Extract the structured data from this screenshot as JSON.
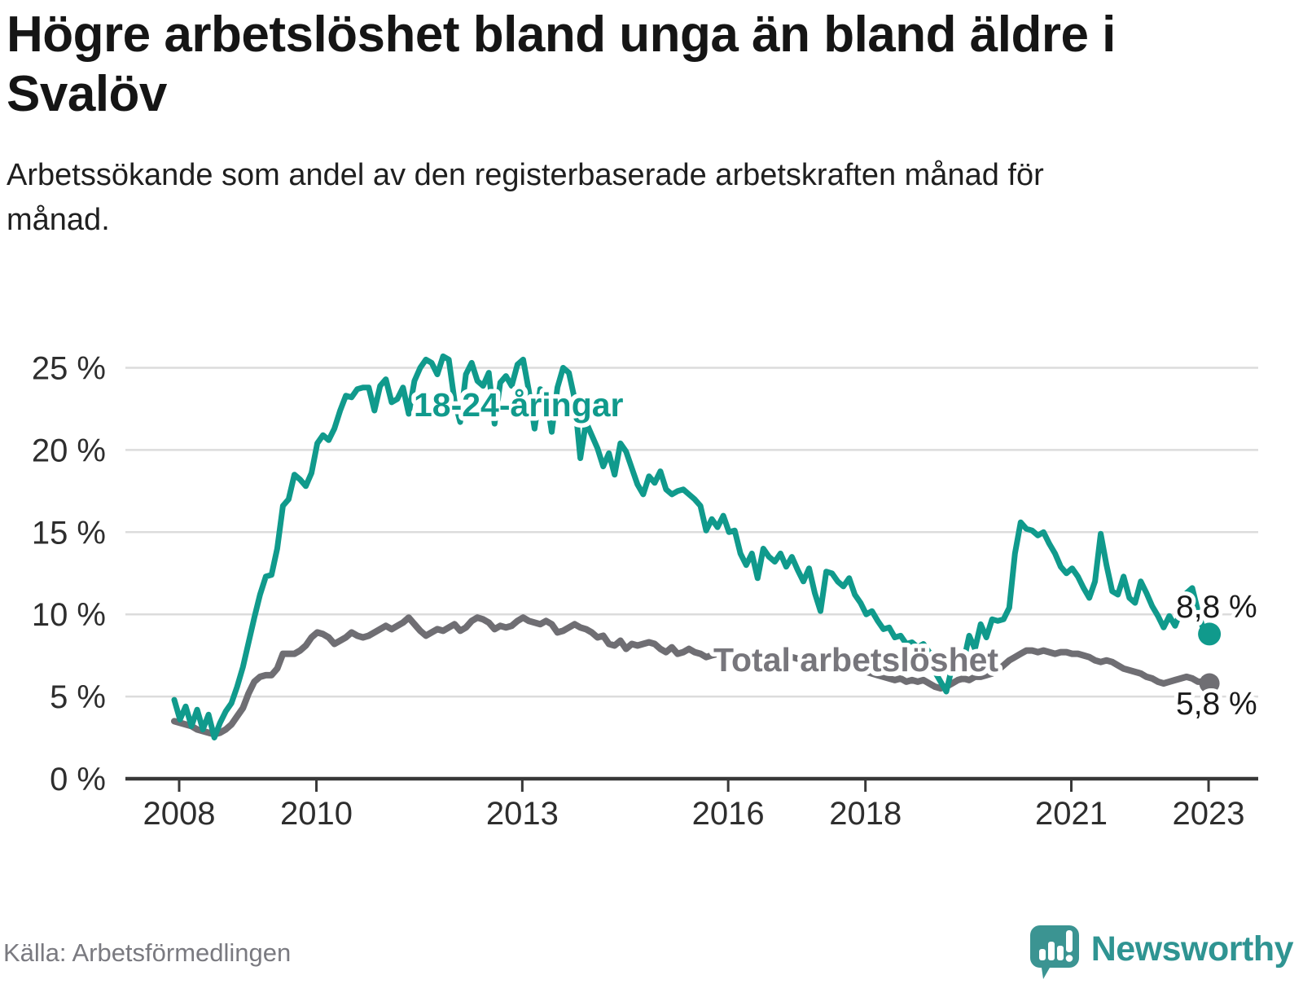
{
  "header": {
    "title": "Högre arbetslöshet bland unga än bland äldre i Svalöv",
    "subtitle": "Arbetssökande som andel av den registerbaserade arbetskraften månad för månad."
  },
  "footer": {
    "source": "Källa: Arbetsförmedlingen",
    "brand": "Newsworthy",
    "brand_color": "#3b9492"
  },
  "chart_data": {
    "type": "line",
    "unit": "%",
    "frequency": "monthly",
    "start": {
      "year": 2008,
      "month": 1
    },
    "end": {
      "year": 2023,
      "month": 2
    },
    "grid": true,
    "ylim": [
      0,
      26.5
    ],
    "y_ticks": [
      {
        "value": 0,
        "label": "0 %"
      },
      {
        "value": 5,
        "label": "5 %"
      },
      {
        "value": 10,
        "label": "10 %"
      },
      {
        "value": 15,
        "label": "15 %"
      },
      {
        "value": 20,
        "label": "20 %"
      },
      {
        "value": 25,
        "label": "25 %"
      }
    ],
    "x_ticks": [
      {
        "year": 2008,
        "label": "2008"
      },
      {
        "year": 2010,
        "label": "2010"
      },
      {
        "year": 2013,
        "label": "2013"
      },
      {
        "year": 2016,
        "label": "2016"
      },
      {
        "year": 2018,
        "label": "2018"
      },
      {
        "year": 2021,
        "label": "2021"
      },
      {
        "year": 2023,
        "label": "2023"
      }
    ],
    "series": [
      {
        "name": "Total arbetslöshet",
        "color": "#6f6e73",
        "label_color": "#77767c",
        "end_value": 5.8,
        "end_label": "5,8 %",
        "values": [
          3.5,
          3.4,
          3.3,
          3.2,
          3.0,
          2.9,
          2.8,
          2.7,
          2.8,
          3.0,
          3.3,
          3.8,
          4.3,
          5.2,
          5.9,
          6.2,
          6.3,
          6.3,
          6.7,
          7.6,
          7.6,
          7.6,
          7.8,
          8.1,
          8.6,
          8.9,
          8.8,
          8.6,
          8.2,
          8.4,
          8.6,
          8.9,
          8.7,
          8.6,
          8.7,
          8.9,
          9.1,
          9.3,
          9.1,
          9.3,
          9.5,
          9.8,
          9.4,
          9.0,
          8.7,
          8.9,
          9.1,
          9.0,
          9.2,
          9.4,
          9.0,
          9.2,
          9.6,
          9.8,
          9.7,
          9.5,
          9.1,
          9.3,
          9.2,
          9.3,
          9.6,
          9.8,
          9.6,
          9.5,
          9.4,
          9.6,
          9.4,
          8.9,
          9.0,
          9.2,
          9.4,
          9.2,
          9.1,
          8.9,
          8.6,
          8.7,
          8.2,
          8.1,
          8.4,
          7.9,
          8.2,
          8.1,
          8.2,
          8.3,
          8.2,
          7.9,
          7.7,
          8.0,
          7.6,
          7.7,
          7.9,
          7.7,
          7.6,
          7.4,
          7.5,
          7.6,
          7.7,
          7.5,
          7.6,
          7.4,
          7.5,
          7.3,
          7.4,
          7.6,
          7.5,
          7.4,
          7.5,
          7.4,
          7.4,
          7.3,
          7.2,
          7.3,
          7.1,
          7.0,
          7.1,
          6.9,
          7.0,
          6.8,
          6.9,
          6.7,
          6.6,
          6.5,
          6.4,
          6.3,
          6.2,
          6.1,
          6.0,
          6.1,
          5.9,
          6.0,
          5.9,
          6.0,
          5.8,
          5.6,
          5.5,
          5.6,
          5.8,
          6.0,
          6.1,
          6.0,
          6.2,
          6.2,
          6.3,
          6.4,
          6.6,
          6.9,
          7.2,
          7.4,
          7.6,
          7.8,
          7.8,
          7.7,
          7.8,
          7.7,
          7.6,
          7.7,
          7.7,
          7.6,
          7.6,
          7.5,
          7.4,
          7.2,
          7.1,
          7.2,
          7.1,
          6.9,
          6.7,
          6.6,
          6.5,
          6.4,
          6.2,
          6.1,
          5.9,
          5.8,
          5.9,
          6.0,
          6.1,
          6.2,
          6.1,
          5.9,
          5.9,
          5.8
        ]
      },
      {
        "name": "18-24-åringar",
        "color": "#109a8c",
        "label_color": "#109a8c",
        "end_value": 8.8,
        "end_label": "8,8 %",
        "values": [
          4.8,
          3.6,
          4.4,
          3.2,
          4.2,
          3.0,
          3.9,
          2.5,
          3.4,
          4.1,
          4.6,
          5.6,
          6.8,
          8.3,
          9.8,
          11.2,
          12.3,
          12.4,
          14.0,
          16.6,
          17.0,
          18.5,
          18.2,
          17.8,
          18.6,
          20.4,
          20.9,
          20.6,
          21.3,
          22.4,
          23.3,
          23.2,
          23.7,
          23.8,
          23.8,
          22.4,
          23.9,
          24.3,
          22.9,
          23.1,
          23.8,
          22.2,
          24.2,
          25.0,
          25.5,
          25.3,
          24.6,
          25.7,
          25.5,
          23.0,
          21.7,
          24.6,
          25.3,
          24.2,
          23.9,
          24.7,
          21.6,
          24.1,
          24.5,
          23.9,
          25.2,
          25.5,
          23.6,
          21.3,
          23.7,
          23.4,
          21.1,
          23.8,
          25.0,
          24.7,
          23.1,
          19.5,
          21.7,
          20.9,
          20.1,
          19.0,
          19.8,
          18.5,
          20.4,
          19.9,
          18.9,
          17.9,
          17.3,
          18.4,
          18.0,
          18.7,
          17.6,
          17.3,
          17.5,
          17.6,
          17.3,
          17.0,
          16.6,
          15.1,
          15.8,
          15.3,
          16.0,
          15.0,
          15.1,
          13.7,
          13.0,
          13.7,
          12.2,
          14.0,
          13.5,
          13.2,
          13.7,
          12.9,
          13.5,
          12.7,
          12.0,
          12.8,
          11.3,
          10.2,
          12.6,
          12.5,
          12.0,
          11.7,
          12.2,
          11.2,
          10.7,
          10.0,
          10.2,
          9.6,
          9.1,
          9.2,
          8.6,
          8.7,
          8.2,
          8.3,
          8.0,
          8.2,
          7.7,
          6.5,
          5.9,
          5.3,
          6.8,
          7.7,
          7.1,
          8.7,
          7.9,
          9.4,
          8.6,
          9.7,
          9.6,
          9.7,
          10.4,
          13.7,
          15.6,
          15.2,
          15.1,
          14.8,
          15.0,
          14.3,
          13.7,
          12.9,
          12.5,
          12.8,
          12.3,
          11.6,
          11.0,
          12.0,
          14.9,
          13.0,
          11.4,
          11.2,
          12.3,
          11.0,
          10.7,
          12.0,
          11.3,
          10.5,
          9.9,
          9.2,
          9.9,
          9.3,
          10.2,
          11.3,
          11.6,
          10.2,
          9.0,
          8.8
        ]
      }
    ]
  }
}
